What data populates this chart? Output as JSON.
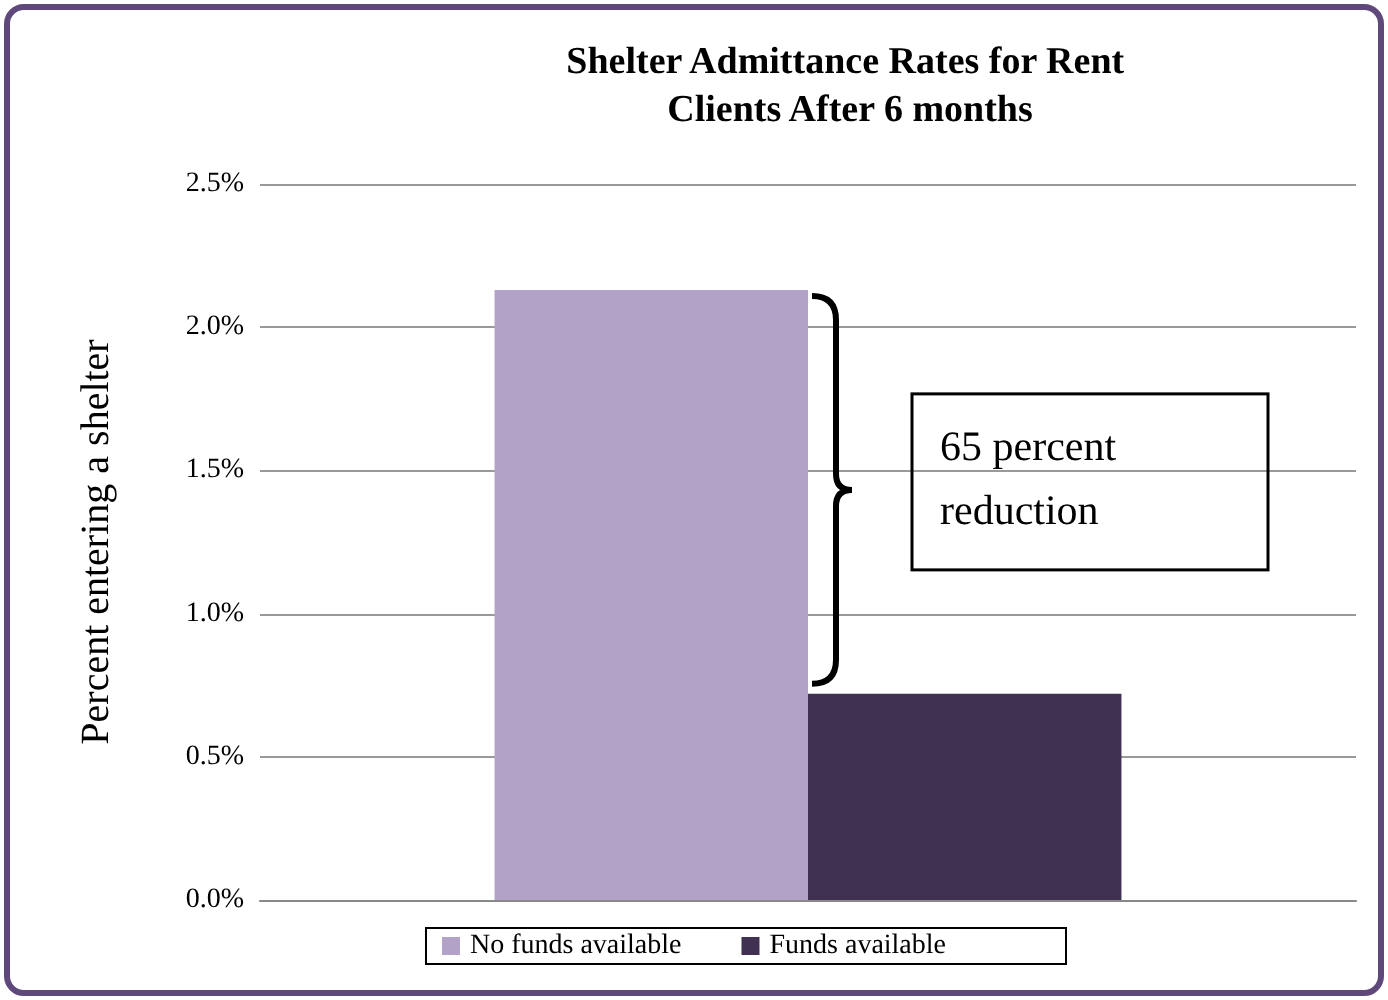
{
  "chart_data": {
    "type": "bar",
    "title": "Shelter Admittance Rates for Rent Clients After 6 months",
    "ylabel": "Percent entering a shelter",
    "categories": [
      null
    ],
    "series": [
      {
        "name": "No funds available",
        "color": "#b3a2c7",
        "values": [
          2.13
        ]
      },
      {
        "name": "Funds available",
        "color": "#403152",
        "values": [
          0.72
        ]
      }
    ],
    "ylim": [
      0,
      2.5
    ],
    "yticks": [
      {
        "value": 0,
        "label": "0.0%"
      },
      {
        "value": 0.5,
        "label": "0.5%"
      },
      {
        "value": 1,
        "label": "1.0%"
      },
      {
        "value": 1.5,
        "label": "1.5%"
      },
      {
        "value": 2,
        "label": "2.0%"
      },
      {
        "value": 2.5,
        "label": "2.5%"
      }
    ],
    "grid": "y",
    "legend": "bottom",
    "tick_labels": "y",
    "annotations": [
      "65 percent reduction"
    ]
  }
}
